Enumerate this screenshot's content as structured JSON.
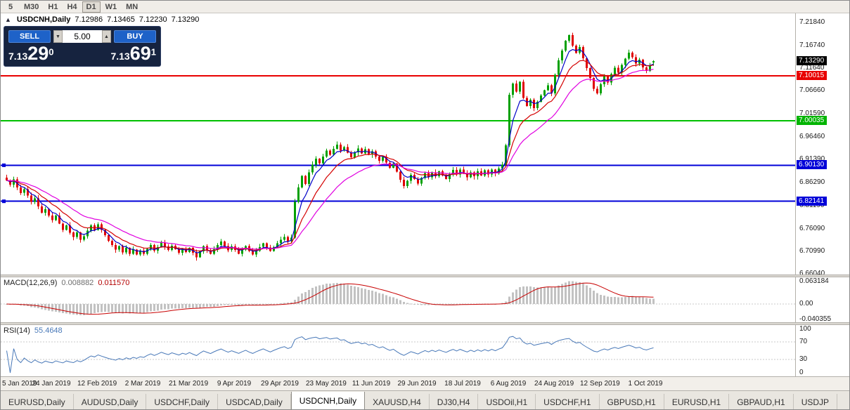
{
  "toolbar": {
    "periods": [
      {
        "label": "5",
        "active": false
      },
      {
        "label": "M30",
        "active": false
      },
      {
        "label": "H1",
        "active": false
      },
      {
        "label": "H4",
        "active": false
      },
      {
        "label": "D1",
        "active": true
      },
      {
        "label": "W1",
        "active": false
      },
      {
        "label": "MN",
        "active": false
      }
    ]
  },
  "main_chart": {
    "collapse_icon": "▲",
    "symbol_label": "USDCNH,Daily",
    "ohlc": {
      "open": "7.12986",
      "high": "7.13465",
      "low": "7.12230",
      "close": "7.13290"
    },
    "one_click": {
      "sell_label": "SELL",
      "buy_label": "BUY",
      "volume": "5.00",
      "vol_down_icon": "▼",
      "vol_up_icon": "▲",
      "sell_price": {
        "prefix": "7.13",
        "big": "29",
        "sup": "0"
      },
      "buy_price": {
        "prefix": "7.13",
        "big": "69",
        "sup": "1"
      }
    },
    "axis_labels": [
      "7.21840",
      "7.16740",
      "7.11640",
      "7.06660",
      "7.01590",
      "6.96460",
      "6.91390",
      "6.86290",
      "6.81190",
      "6.76090",
      "6.70990",
      "6.66040"
    ],
    "price_badges": [
      {
        "label": "7.13290",
        "value": 7.1329,
        "color": "#000000",
        "name": "current-price"
      },
      {
        "label": "7.10015",
        "value": 7.10015,
        "color": "#E80000",
        "name": "red-line-price"
      },
      {
        "label": "7.00035",
        "value": 7.00035,
        "color": "#00B400",
        "name": "green-line-price"
      },
      {
        "label": "6.90130",
        "value": 6.9013,
        "color": "#0000D8",
        "name": "blue-line-price-1"
      },
      {
        "label": "6.82141",
        "value": 6.82141,
        "color": "#0000D8",
        "name": "blue-line-price-2"
      }
    ],
    "hlines": [
      {
        "value": 7.10015,
        "color": "#E80000",
        "width": 2,
        "handle": false
      },
      {
        "value": 7.00035,
        "color": "#00C000",
        "width": 2,
        "handle": false
      },
      {
        "value": 6.9013,
        "color": "#0000D8",
        "width": 2,
        "handle": true
      },
      {
        "value": 6.82141,
        "color": "#0000D8",
        "width": 2,
        "handle": true
      }
    ]
  },
  "chart_data": {
    "type": "candlestick",
    "symbol": "USDCNH",
    "timeframe": "Daily",
    "y_axis": {
      "top": 7.23866,
      "bottom": 6.65884
    },
    "x_labels": [
      "5 Jan 2019",
      "24 Jan 2019",
      "12 Feb 2019",
      "2 Mar 2019",
      "21 Mar 2019",
      "9 Apr 2019",
      "29 Apr 2019",
      "23 May 2019",
      "11 Jun 2019",
      "29 Jun 2019",
      "18 Jul 2019",
      "6 Aug 2019",
      "24 Aug 2019",
      "12 Sep 2019",
      "1 Oct 2019"
    ],
    "label_every": 13,
    "first_open": 6.874,
    "closes": [
      6.868,
      6.858,
      6.87,
      6.852,
      6.84,
      6.848,
      6.834,
      6.82,
      6.828,
      6.81,
      6.796,
      6.804,
      6.79,
      6.78,
      6.79,
      6.772,
      6.758,
      6.768,
      6.752,
      6.742,
      6.752,
      6.736,
      6.744,
      6.756,
      6.768,
      6.758,
      6.77,
      6.758,
      6.746,
      6.734,
      6.724,
      6.714,
      6.722,
      6.708,
      6.718,
      6.705,
      6.714,
      6.703,
      6.712,
      6.705,
      6.716,
      6.724,
      6.712,
      6.72,
      6.73,
      6.721,
      6.713,
      6.723,
      6.715,
      6.707,
      6.716,
      6.709,
      6.718,
      6.707,
      6.697,
      6.71,
      6.722,
      6.713,
      6.705,
      6.715,
      6.724,
      6.732,
      6.722,
      6.713,
      6.721,
      6.713,
      6.705,
      6.714,
      6.722,
      6.711,
      6.703,
      6.712,
      6.72,
      6.728,
      6.719,
      6.711,
      6.72,
      6.728,
      6.736,
      6.742,
      6.733,
      6.741,
      6.82,
      6.852,
      6.878,
      6.86,
      6.886,
      6.903,
      6.916,
      6.906,
      6.921,
      6.934,
      6.925,
      6.938,
      6.947,
      6.934,
      6.942,
      6.929,
      6.919,
      6.93,
      6.939,
      6.928,
      6.937,
      6.925,
      6.932,
      6.921,
      6.911,
      6.92,
      6.907,
      6.896,
      6.905,
      6.887,
      6.869,
      6.855,
      6.867,
      6.88,
      6.871,
      6.861,
      6.873,
      6.884,
      6.875,
      6.886,
      6.877,
      6.888,
      6.879,
      6.871,
      6.882,
      6.891,
      6.881,
      6.892,
      6.883,
      6.875,
      6.886,
      6.877,
      6.888,
      6.879,
      6.89,
      6.881,
      6.892,
      6.883,
      6.894,
      6.903,
      6.946,
      7.058,
      7.083,
      7.065,
      7.087,
      7.051,
      7.033,
      7.047,
      7.028,
      7.042,
      7.056,
      7.068,
      7.079,
      7.061,
      7.102,
      7.134,
      7.156,
      7.178,
      7.19,
      7.167,
      7.151,
      7.164,
      7.139,
      7.117,
      7.095,
      7.071,
      7.061,
      7.081,
      7.098,
      7.085,
      7.104,
      7.118,
      7.107,
      7.124,
      7.138,
      7.151,
      7.141,
      7.127,
      7.136,
      7.119,
      7.111,
      7.123,
      7.1329
    ],
    "moving_averages": [
      {
        "period": 5,
        "color": "#0000C8",
        "type": "ema",
        "name": "ma-fast-blue"
      },
      {
        "period": 11,
        "color": "#D40000",
        "type": "ema",
        "name": "ma-medium-red"
      },
      {
        "period": 22,
        "color": "#E000E0",
        "type": "ema",
        "name": "ma-slow-magenta"
      }
    ],
    "candle_colors": {
      "bull": "#00A000",
      "bear": "#E00000"
    }
  },
  "macd_panel": {
    "name": "MACD(12,26,9)",
    "value_main": "0.008882",
    "value_signal": "0.011570",
    "axis_labels": [
      {
        "label": "0.063184",
        "value": 0.063184
      },
      {
        "label": "0.00",
        "value": 0
      },
      {
        "label": "-0.040355",
        "value": -0.040355
      }
    ],
    "histogram_color": "#C2C2C2",
    "signal_color": "#C80000",
    "params": {
      "fast": 12,
      "slow": 26,
      "signal": 9
    }
  },
  "rsi_panel": {
    "name": "RSI(14)",
    "value": "55.4648",
    "period": 14,
    "axis_labels": [
      {
        "label": "100",
        "value": 100
      },
      {
        "label": "70",
        "value": 70
      },
      {
        "label": "30",
        "value": 30
      },
      {
        "label": "0",
        "value": 0
      }
    ],
    "levels": [
      70,
      30
    ],
    "line_color": "#4878B8"
  },
  "tabbar": {
    "tabs": [
      {
        "label": "EURUSD,Daily",
        "active": false
      },
      {
        "label": "AUDUSD,Daily",
        "active": false
      },
      {
        "label": "USDCHF,Daily",
        "active": false
      },
      {
        "label": "USDCAD,Daily",
        "active": false
      },
      {
        "label": "USDCNH,Daily",
        "active": true
      },
      {
        "label": "XAUUSD,H4",
        "active": false
      },
      {
        "label": "DJ30,H4",
        "active": false
      },
      {
        "label": "USDOil,H1",
        "active": false
      },
      {
        "label": "USDCHF,H1",
        "active": false
      },
      {
        "label": "GBPUSD,H1",
        "active": false
      },
      {
        "label": "EURUSD,H1",
        "active": false
      },
      {
        "label": "GBPAUD,H1",
        "active": false
      },
      {
        "label": "USDJP",
        "active": false
      }
    ]
  }
}
